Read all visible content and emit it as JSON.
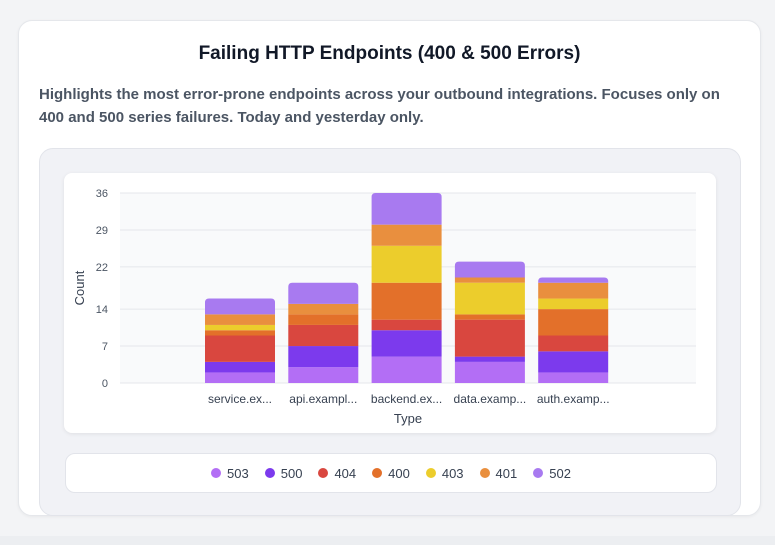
{
  "card": {
    "title": "Failing HTTP Endpoints (400 & 500 Errors)",
    "description": "Highlights the most error-prone endpoints across your outbound integrations. Focuses only on 400 and 500 series failures. Today and yesterday only."
  },
  "chart_data": {
    "type": "bar",
    "stacked": true,
    "title": "",
    "xlabel": "Type",
    "ylabel": "Count",
    "ylim": [
      0,
      36
    ],
    "yticks": [
      0,
      7,
      14,
      22,
      29,
      36
    ],
    "grid": true,
    "legend_position": "bottom",
    "categories": [
      "service.ex...",
      "api.exampl...",
      "backend.ex...",
      "data.examp...",
      "auth.examp..."
    ],
    "series": [
      {
        "name": "503",
        "color": "#b36ef5",
        "values": [
          2,
          3,
          5,
          4,
          2
        ]
      },
      {
        "name": "500",
        "color": "#7c3aed",
        "values": [
          2,
          4,
          5,
          1,
          4
        ]
      },
      {
        "name": "404",
        "color": "#d9473f",
        "values": [
          5,
          4,
          2,
          7,
          3
        ]
      },
      {
        "name": "400",
        "color": "#e3702a",
        "values": [
          1,
          2,
          7,
          1,
          5
        ]
      },
      {
        "name": "403",
        "color": "#eccd2c",
        "values": [
          1,
          0,
          7,
          6,
          2
        ]
      },
      {
        "name": "401",
        "color": "#e98f3e",
        "values": [
          2,
          2,
          4,
          1,
          3
        ]
      },
      {
        "name": "502",
        "color": "#a87af0",
        "values": [
          3,
          4,
          6,
          3,
          1
        ]
      }
    ]
  }
}
